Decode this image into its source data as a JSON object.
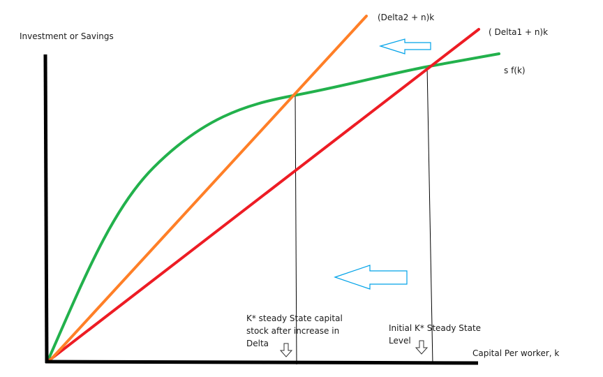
{
  "labels": {
    "y_axis": "Investment or Savings",
    "x_axis": "Capital Per worker, k",
    "curve_sfk": "s f(k)",
    "line_delta1": "( Delta1 + n)k",
    "line_delta2": "(Delta2 + n)k",
    "new_steady_state": [
      "K* steady State capital",
      "stock after increase in",
      "Delta"
    ],
    "initial_steady_state": [
      "Initial K* Steady State",
      "Level"
    ]
  },
  "colors": {
    "axis": "#000000",
    "curve_sfk": "#22b14c",
    "line_delta1": "#ed1c24",
    "line_delta2": "#ff7f27",
    "arrow_outline": "#00a2e8",
    "guide_line": "#000000"
  },
  "icons": [
    "left-arrow-icon",
    "down-arrow-icon"
  ]
}
